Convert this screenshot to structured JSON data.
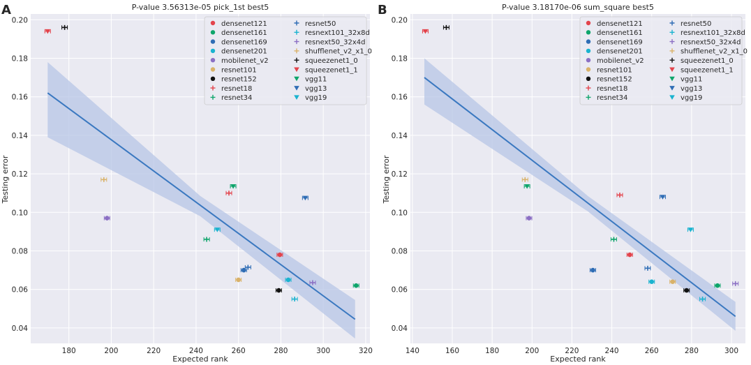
{
  "marker_legend": {
    "densenet121": {
      "shape": "circle",
      "color": "#e3434b"
    },
    "densenet161": {
      "shape": "circle",
      "color": "#0ea56b"
    },
    "densenet169": {
      "shape": "circle",
      "color": "#2f6db5"
    },
    "densenet201": {
      "shape": "circle",
      "color": "#1ab3cf"
    },
    "mobilenet_v2": {
      "shape": "circle",
      "color": "#8b6fc4"
    },
    "resnet101": {
      "shape": "circle",
      "color": "#d9b269"
    },
    "resnet152": {
      "shape": "circle",
      "color": "#111111"
    },
    "resnet18": {
      "shape": "plus",
      "color": "#e3434b"
    },
    "resnet34": {
      "shape": "plus",
      "color": "#0ea56b"
    },
    "resnet50": {
      "shape": "plus",
      "color": "#2f6db5"
    },
    "resnext101_32x8d": {
      "shape": "plus",
      "color": "#1ab3cf"
    },
    "resnext50_32x4d": {
      "shape": "plus",
      "color": "#8b6fc4"
    },
    "shufflenet_v2_x1_0": {
      "shape": "plus",
      "color": "#d9b269"
    },
    "squeezenet1_0": {
      "shape": "plus",
      "color": "#111111"
    },
    "squeezenet1_1": {
      "shape": "tri-down",
      "color": "#e3434b"
    },
    "vgg11": {
      "shape": "tri-down",
      "color": "#0ea56b"
    },
    "vgg13": {
      "shape": "tri-down",
      "color": "#2f6db5"
    },
    "vgg19": {
      "shape": "tri-down",
      "color": "#1ab3cf"
    }
  },
  "colors": {
    "regression_line": "#3a78c0",
    "ci_band": "#b7c6e6",
    "axes_bg": "#eaeaf2",
    "grid": "#ffffff"
  },
  "chart_data": [
    {
      "type": "scatter",
      "panel_label": "A",
      "title": "P-value 3.56313e-05 pick_1st best5",
      "xlabel": "Expected rank",
      "ylabel": "Testing error",
      "xlim": [
        162,
        322
      ],
      "ylim": [
        0.032,
        0.203
      ],
      "xticks": [
        180,
        200,
        220,
        240,
        260,
        280,
        300,
        320
      ],
      "yticks": [
        0.04,
        0.06,
        0.08,
        0.1,
        0.12,
        0.14,
        0.16,
        0.18,
        0.2
      ],
      "legend_location": "top-right",
      "legend": [
        "densenet121",
        "densenet161",
        "densenet169",
        "densenet201",
        "mobilenet_v2",
        "resnet101",
        "resnet152",
        "resnet18",
        "resnet34",
        "resnet50",
        "resnext101_32x8d",
        "resnext50_32x4d",
        "shufflenet_v2_x1_0",
        "squeezenet1_0",
        "squeezenet1_1",
        "vgg11",
        "vgg13",
        "vgg19"
      ],
      "points": [
        {
          "model": "densenet121",
          "x": 279.5,
          "y": 0.078
        },
        {
          "model": "densenet161",
          "x": 315.5,
          "y": 0.062
        },
        {
          "model": "densenet169",
          "x": 262.5,
          "y": 0.07
        },
        {
          "model": "densenet201",
          "x": 283.5,
          "y": 0.065
        },
        {
          "model": "mobilenet_v2",
          "x": 198.0,
          "y": 0.097
        },
        {
          "model": "resnet101",
          "x": 260.0,
          "y": 0.065
        },
        {
          "model": "resnet152",
          "x": 279.0,
          "y": 0.0595
        },
        {
          "model": "resnet18",
          "x": 255.5,
          "y": 0.11
        },
        {
          "model": "resnet34",
          "x": 245.0,
          "y": 0.086
        },
        {
          "model": "resnet50",
          "x": 264.5,
          "y": 0.0715
        },
        {
          "model": "resnext101_32x8d",
          "x": 286.5,
          "y": 0.055
        },
        {
          "model": "resnext50_32x4d",
          "x": 295.0,
          "y": 0.0635
        },
        {
          "model": "shufflenet_v2_x1_0",
          "x": 196.5,
          "y": 0.117
        },
        {
          "model": "squeezenet1_0",
          "x": 178.0,
          "y": 0.196
        },
        {
          "model": "squeezenet1_1",
          "x": 170.0,
          "y": 0.194
        },
        {
          "model": "vgg11",
          "x": 257.5,
          "y": 0.1135
        },
        {
          "model": "vgg13",
          "x": 291.5,
          "y": 0.1075
        },
        {
          "model": "vgg19",
          "x": 250.0,
          "y": 0.091
        }
      ],
      "regression": {
        "x": [
          170,
          315
        ],
        "y": [
          0.162,
          0.0445
        ]
      },
      "ci_band": {
        "x": [
          170,
          242,
          315
        ],
        "lower": [
          0.139,
          0.098,
          0.0345
        ],
        "upper": [
          0.178,
          0.1085,
          0.0545
        ]
      }
    },
    {
      "type": "scatter",
      "panel_label": "B",
      "title": "P-value 3.18170e-06 sum_square best5",
      "xlabel": "Expected rank",
      "ylabel": "Testing error",
      "xlim": [
        139,
        307
      ],
      "ylim": [
        0.032,
        0.203
      ],
      "xticks": [
        140,
        160,
        180,
        200,
        220,
        240,
        260,
        280,
        300
      ],
      "yticks": [
        0.04,
        0.06,
        0.08,
        0.1,
        0.12,
        0.14,
        0.16,
        0.18,
        0.2
      ],
      "legend_location": "top-right",
      "legend": [
        "densenet121",
        "densenet161",
        "densenet169",
        "densenet201",
        "mobilenet_v2",
        "resnet101",
        "resnet152",
        "resnet18",
        "resnet34",
        "resnet50",
        "resnext101_32x8d",
        "resnext50_32x4d",
        "shufflenet_v2_x1_0",
        "squeezenet1_0",
        "squeezenet1_1",
        "vgg11",
        "vgg13",
        "vgg19"
      ],
      "points": [
        {
          "model": "densenet121",
          "x": 249.0,
          "y": 0.078
        },
        {
          "model": "densenet161",
          "x": 293.0,
          "y": 0.062
        },
        {
          "model": "densenet169",
          "x": 230.5,
          "y": 0.07
        },
        {
          "model": "densenet201",
          "x": 260.0,
          "y": 0.064
        },
        {
          "model": "mobilenet_v2",
          "x": 198.5,
          "y": 0.097
        },
        {
          "model": "resnet101",
          "x": 270.5,
          "y": 0.064
        },
        {
          "model": "resnet152",
          "x": 277.5,
          "y": 0.0595
        },
        {
          "model": "resnet18",
          "x": 244.0,
          "y": 0.109
        },
        {
          "model": "resnet34",
          "x": 241.0,
          "y": 0.086
        },
        {
          "model": "resnet50",
          "x": 258.0,
          "y": 0.071
        },
        {
          "model": "resnext101_32x8d",
          "x": 285.5,
          "y": 0.055
        },
        {
          "model": "resnext50_32x4d",
          "x": 302.0,
          "y": 0.063
        },
        {
          "model": "shufflenet_v2_x1_0",
          "x": 196.5,
          "y": 0.117
        },
        {
          "model": "squeezenet1_0",
          "x": 157.0,
          "y": 0.196
        },
        {
          "model": "squeezenet1_1",
          "x": 146.5,
          "y": 0.194
        },
        {
          "model": "vgg11",
          "x": 197.5,
          "y": 0.1135
        },
        {
          "model": "vgg13",
          "x": 265.5,
          "y": 0.108
        },
        {
          "model": "vgg19",
          "x": 279.5,
          "y": 0.091
        }
      ],
      "regression": {
        "x": [
          146,
          302
        ],
        "y": [
          0.17,
          0.046
        ]
      },
      "ci_band": {
        "x": [
          146,
          228,
          302
        ],
        "lower": [
          0.156,
          0.1005,
          0.0385
        ],
        "upper": [
          0.18,
          0.1085,
          0.0535
        ]
      }
    }
  ]
}
